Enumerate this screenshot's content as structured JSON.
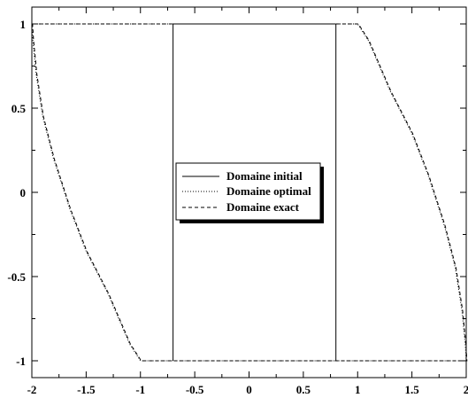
{
  "chart_data": {
    "type": "line",
    "title": "",
    "xlabel": "",
    "ylabel": "",
    "xlim": [
      -2,
      2
    ],
    "ylim": [
      -1.1,
      1.1
    ],
    "x_ticks": [
      -2,
      -1.5,
      -1,
      -0.5,
      0,
      0.5,
      1,
      1.5,
      2
    ],
    "y_ticks": [
      -1,
      -0.5,
      0,
      0.5,
      1
    ],
    "x_tick_labels": [
      "-2",
      "-1.5",
      "-1",
      "-0.5",
      "0",
      "0.5",
      "1",
      "1.5",
      "2"
    ],
    "y_tick_labels": [
      "-1",
      "-0.5",
      "0",
      "0.5",
      "1"
    ],
    "grid": false,
    "legend_position": "center",
    "series": [
      {
        "name": "Domaine initial",
        "style": "solid",
        "color": "#000000",
        "segments": [
          [
            [
              -0.7,
              -1
            ],
            [
              -0.7,
              1
            ]
          ],
          [
            [
              -0.7,
              1
            ],
            [
              0.8,
              1
            ]
          ],
          [
            [
              0.8,
              1
            ],
            [
              0.8,
              -1
            ]
          ]
        ]
      },
      {
        "name": "Domaine optimal",
        "style": "dotted",
        "color": "#000000",
        "segments": [
          [
            [
              -2,
              1
            ],
            [
              1,
              1
            ],
            [
              1.1,
              0.9
            ],
            [
              1.3,
              0.6
            ],
            [
              1.5,
              0.35
            ],
            [
              1.65,
              0.1
            ],
            [
              1.8,
              -0.2
            ],
            [
              1.9,
              -0.45
            ],
            [
              1.96,
              -0.7
            ],
            [
              1.99,
              -0.9
            ],
            [
              2,
              -1
            ],
            [
              -1,
              -1
            ],
            [
              -1.1,
              -0.9
            ],
            [
              -1.3,
              -0.6
            ],
            [
              -1.5,
              -0.35
            ],
            [
              -1.65,
              -0.1
            ],
            [
              -1.8,
              0.2
            ],
            [
              -1.9,
              0.45
            ],
            [
              -1.96,
              0.7
            ],
            [
              -1.99,
              0.9
            ],
            [
              -2,
              1
            ]
          ]
        ]
      },
      {
        "name": "Domaine exact",
        "style": "dashed",
        "color": "#000000",
        "segments": [
          [
            [
              -2,
              1
            ],
            [
              1,
              1
            ],
            [
              1.1,
              0.9
            ],
            [
              1.3,
              0.6
            ],
            [
              1.5,
              0.35
            ],
            [
              1.65,
              0.1
            ],
            [
              1.8,
              -0.2
            ],
            [
              1.9,
              -0.45
            ],
            [
              1.96,
              -0.7
            ],
            [
              1.99,
              -0.9
            ],
            [
              2,
              -1
            ],
            [
              -1,
              -1
            ],
            [
              -1.1,
              -0.9
            ],
            [
              -1.3,
              -0.6
            ],
            [
              -1.5,
              -0.35
            ],
            [
              -1.65,
              -0.1
            ],
            [
              -1.8,
              0.2
            ],
            [
              -1.9,
              0.45
            ],
            [
              -1.96,
              0.7
            ],
            [
              -1.99,
              0.9
            ],
            [
              -2,
              1
            ]
          ]
        ]
      }
    ]
  }
}
